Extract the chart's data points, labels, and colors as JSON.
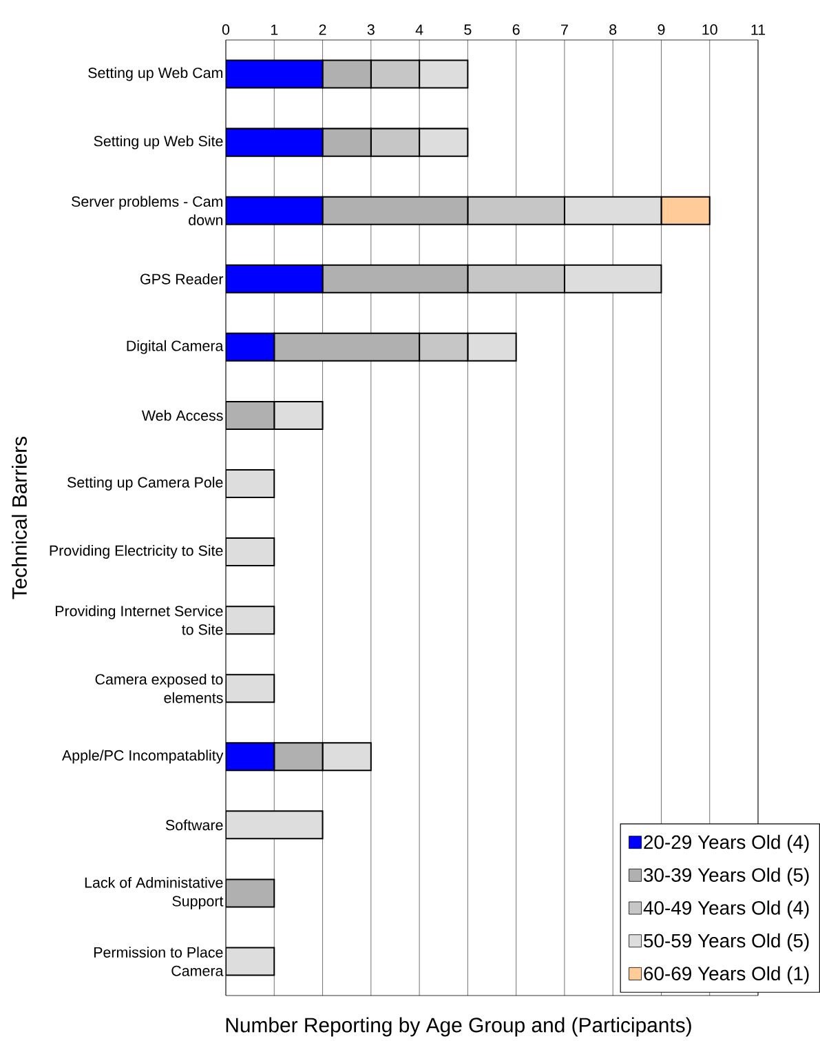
{
  "chart_data": {
    "type": "bar",
    "orientation": "horizontal",
    "stacked": true,
    "xlabel": "Number Reporting by Age Group and (Participants)",
    "ylabel": "Technical Barriers",
    "categories": [
      "Setting up Web Cam",
      "Setting up Web Site",
      "Server problems - Cam down",
      "GPS Reader",
      "Digital Camera",
      "Web Access",
      "Setting up Camera Pole",
      "Providing Electricity to Site",
      "Providing Internet Service to Site",
      "Camera exposed to elements",
      "Apple/PC Incompatablity",
      "Software",
      "Lack of Administative Support",
      "Permission to Place Camera"
    ],
    "series": [
      {
        "name": "20-29 Years Old (4)",
        "color": "#0000ff",
        "values": [
          2,
          2,
          2,
          2,
          1,
          0,
          0,
          0,
          0,
          0,
          1,
          0,
          0,
          0
        ]
      },
      {
        "name": "30-39 Years Old (5)",
        "color": "#b0b0b0",
        "values": [
          1,
          1,
          3,
          3,
          3,
          1,
          0,
          0,
          0,
          0,
          1,
          0,
          1,
          0
        ]
      },
      {
        "name": "40-49 Years Old (4)",
        "color": "#c6c6c6",
        "values": [
          1,
          1,
          2,
          2,
          1,
          0,
          0,
          0,
          0,
          0,
          0,
          0,
          0,
          0
        ]
      },
      {
        "name": "50-59 Years Old (5)",
        "color": "#dddddd",
        "values": [
          1,
          1,
          2,
          2,
          1,
          1,
          1,
          1,
          1,
          1,
          1,
          2,
          0,
          1
        ]
      },
      {
        "name": "60-69 Years Old (1)",
        "color": "#ffcc99",
        "values": [
          0,
          0,
          1,
          0,
          0,
          0,
          0,
          0,
          0,
          0,
          0,
          0,
          0,
          0
        ]
      }
    ],
    "xlim": [
      0,
      11
    ],
    "xticks": [
      0,
      1,
      2,
      3,
      4,
      5,
      6,
      7,
      8,
      9,
      10,
      11
    ],
    "grid": "x",
    "legend": "bottom right"
  }
}
